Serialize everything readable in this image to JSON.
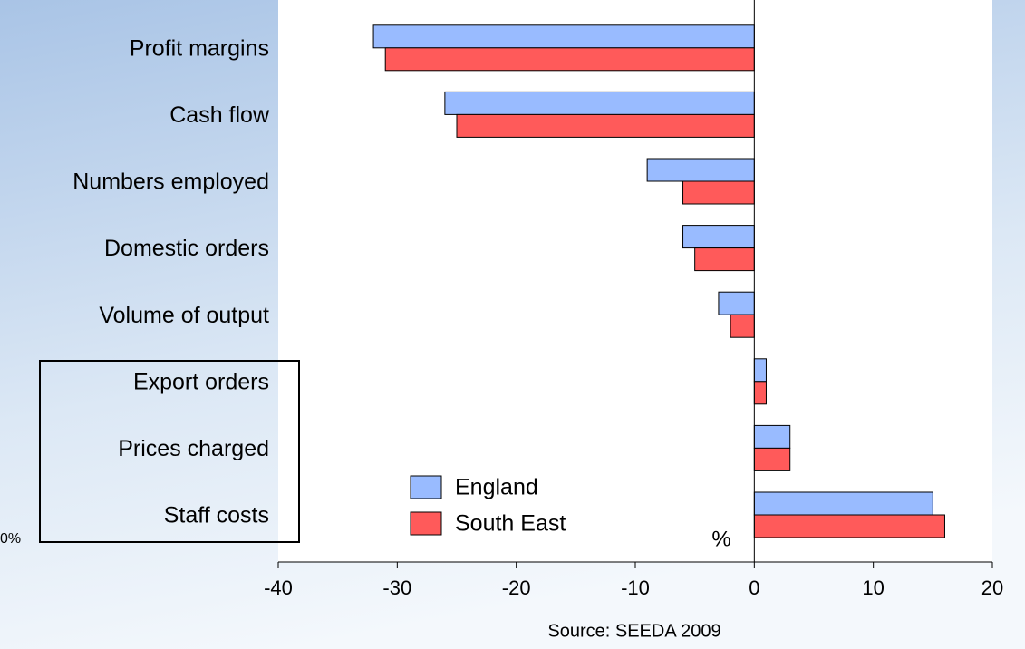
{
  "chart_data": {
    "type": "hbar",
    "categories": [
      "Profit margins",
      "Cash flow",
      "Numbers employed",
      "Domestic orders",
      "Volume of output",
      "Export orders",
      "Prices charged",
      "Staff costs"
    ],
    "series": [
      {
        "name": "England",
        "color": "#99bbff",
        "values": [
          -32,
          -26,
          -9,
          -6,
          -3,
          1,
          3,
          15
        ]
      },
      {
        "name": "South East",
        "color": "#ff5a5a",
        "values": [
          -31,
          -25,
          -6,
          -5,
          -2,
          1,
          3,
          16
        ]
      }
    ],
    "xlim": [
      -40,
      20
    ],
    "xticks": [
      -40,
      -30,
      -20,
      -10,
      0,
      10,
      20
    ],
    "axis_label": "%",
    "annotation": "0%",
    "source": "Source: SEEDA 2009"
  }
}
